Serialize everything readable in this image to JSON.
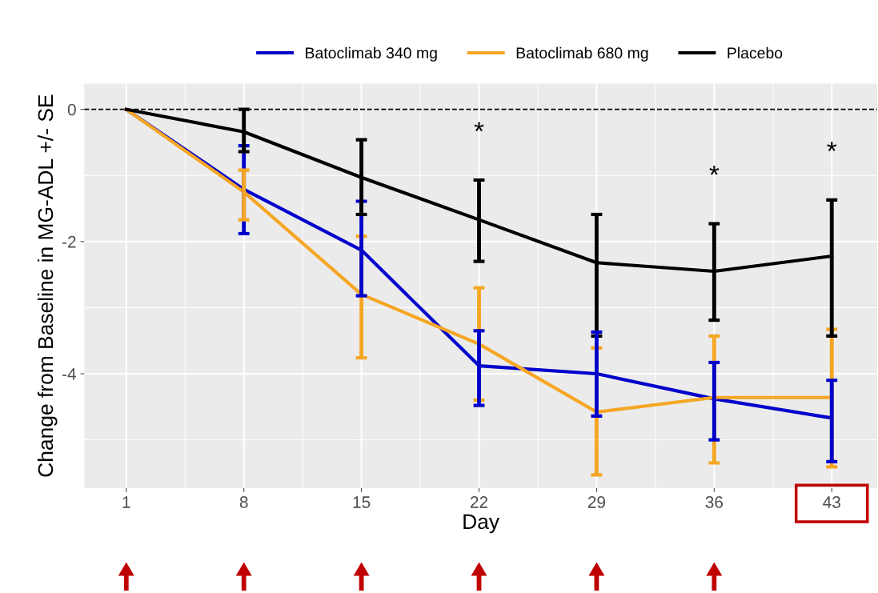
{
  "chart_data": {
    "type": "line",
    "ylabel": "Change from Baseline in MG-ADL +/- SE",
    "xlabel": "Day",
    "x": [
      1,
      8,
      15,
      22,
      29,
      36,
      43
    ],
    "series": [
      {
        "name": "Batoclimab 340 mg",
        "color": "#0000cc",
        "values": [
          0,
          -1.21,
          -2.13,
          -3.88,
          -4.0,
          -4.38,
          -4.67
        ],
        "errors": [
          null,
          [
            -1.88,
            -0.55
          ],
          [
            -2.82,
            -1.39
          ],
          [
            -4.48,
            -3.35
          ],
          [
            -4.64,
            -3.37
          ],
          [
            -5.0,
            -3.83
          ],
          [
            -5.33,
            -4.1
          ]
        ]
      },
      {
        "name": "Batoclimab 680 mg",
        "color": "#f5a623",
        "values": [
          0,
          -1.25,
          -2.8,
          -3.55,
          -4.58,
          -4.36,
          -4.36
        ],
        "errors": [
          null,
          [
            -1.67,
            -0.92
          ],
          [
            -3.76,
            -1.92
          ],
          [
            -4.4,
            -2.7
          ],
          [
            -5.53,
            -3.61
          ],
          [
            -5.35,
            -3.43
          ],
          [
            -5.41,
            -3.33
          ]
        ]
      },
      {
        "name": "Placebo",
        "color": "#000000",
        "values": [
          0,
          -0.34,
          -1.03,
          -1.67,
          -2.32,
          -2.45,
          -2.22
        ],
        "errors": [
          null,
          [
            -0.64,
            0.0
          ],
          [
            -1.59,
            -0.46
          ],
          [
            -2.3,
            -1.07
          ],
          [
            -3.43,
            -1.59
          ],
          [
            -3.19,
            -1.73
          ],
          [
            -3.43,
            -1.37
          ]
        ]
      }
    ],
    "xlim": [
      -1.5,
      45.7
    ],
    "ylim": [
      -5.73,
      0.39
    ],
    "xticks": [
      1,
      8,
      15,
      22,
      29,
      36,
      43
    ],
    "yticks": [
      {
        "value": -4,
        "label": "-4"
      },
      {
        "value": -2,
        "label": "-2"
      },
      0
    ],
    "ref_lines": [
      {
        "axis": "y",
        "value": 0,
        "color": "#000000",
        "line_style": "dashed"
      }
    ],
    "annotations": [
      {
        "text": "*",
        "x": 22,
        "y": -1.07
      },
      {
        "text": "*",
        "x": 36,
        "y": -1.73
      },
      {
        "text": "*",
        "x": 43,
        "y": -1.37
      }
    ],
    "grid": true,
    "legend": "top",
    "marker": "none",
    "line_style": "solid"
  }
}
